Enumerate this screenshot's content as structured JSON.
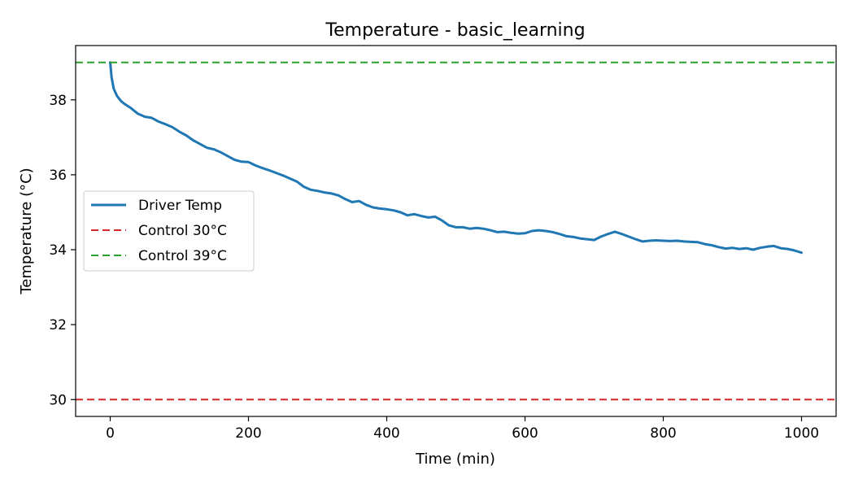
{
  "chart_data": {
    "type": "line",
    "title": "Temperature - basic_learning",
    "xlabel": "Time (min)",
    "ylabel": "Temperature (°C)",
    "xlim": [
      -50,
      1050
    ],
    "ylim": [
      29.55,
      39.45
    ],
    "xticks": [
      0,
      200,
      400,
      600,
      800,
      1000
    ],
    "yticks": [
      30,
      32,
      34,
      36,
      38
    ],
    "grid": false,
    "legend_position": "center-left",
    "series": [
      {
        "name": "Driver Temp",
        "color": "#1f77b4",
        "style": "solid",
        "x": [
          0,
          2,
          5,
          10,
          15,
          20,
          30,
          40,
          50,
          60,
          70,
          80,
          90,
          100,
          110,
          120,
          130,
          140,
          150,
          160,
          170,
          180,
          190,
          200,
          210,
          220,
          230,
          240,
          250,
          260,
          270,
          280,
          290,
          300,
          310,
          320,
          330,
          340,
          350,
          360,
          370,
          380,
          390,
          400,
          410,
          420,
          430,
          440,
          450,
          460,
          470,
          480,
          490,
          500,
          510,
          520,
          530,
          540,
          550,
          560,
          570,
          580,
          590,
          600,
          610,
          620,
          630,
          640,
          650,
          660,
          670,
          680,
          690,
          700,
          710,
          720,
          730,
          740,
          750,
          760,
          770,
          780,
          790,
          800,
          810,
          820,
          830,
          840,
          850,
          860,
          870,
          880,
          890,
          900,
          910,
          920,
          930,
          940,
          950,
          960,
          970,
          980,
          990,
          1000
        ],
        "y": [
          39.0,
          38.6,
          38.3,
          38.1,
          37.98,
          37.9,
          37.78,
          37.63,
          37.55,
          37.52,
          37.42,
          37.35,
          37.27,
          37.15,
          37.05,
          36.92,
          36.82,
          36.72,
          36.68,
          36.6,
          36.5,
          36.4,
          36.35,
          36.34,
          36.25,
          36.18,
          36.12,
          36.05,
          35.98,
          35.9,
          35.82,
          35.68,
          35.6,
          35.57,
          35.53,
          35.5,
          35.45,
          35.35,
          35.27,
          35.3,
          35.2,
          35.13,
          35.1,
          35.08,
          35.05,
          35.0,
          34.92,
          34.95,
          34.9,
          34.86,
          34.88,
          34.78,
          34.65,
          34.6,
          34.6,
          34.56,
          34.58,
          34.56,
          34.52,
          34.47,
          34.48,
          34.45,
          34.43,
          34.44,
          34.5,
          34.52,
          34.5,
          34.47,
          34.42,
          34.36,
          34.34,
          34.3,
          34.28,
          34.26,
          34.35,
          34.42,
          34.48,
          34.42,
          34.35,
          34.28,
          34.22,
          34.24,
          34.25,
          34.24,
          34.23,
          34.24,
          34.22,
          34.21,
          34.2,
          34.15,
          34.12,
          34.07,
          34.03,
          34.05,
          34.02,
          34.04,
          34.0,
          34.05,
          34.08,
          34.1,
          34.04,
          34.02,
          33.98,
          33.92
        ]
      },
      {
        "name": "Control 30°C",
        "color": "#d62728",
        "style": "dashed",
        "hline": 30
      },
      {
        "name": "Control 39°C",
        "color": "#2ca02c",
        "style": "dashed",
        "hline": 39
      }
    ]
  }
}
